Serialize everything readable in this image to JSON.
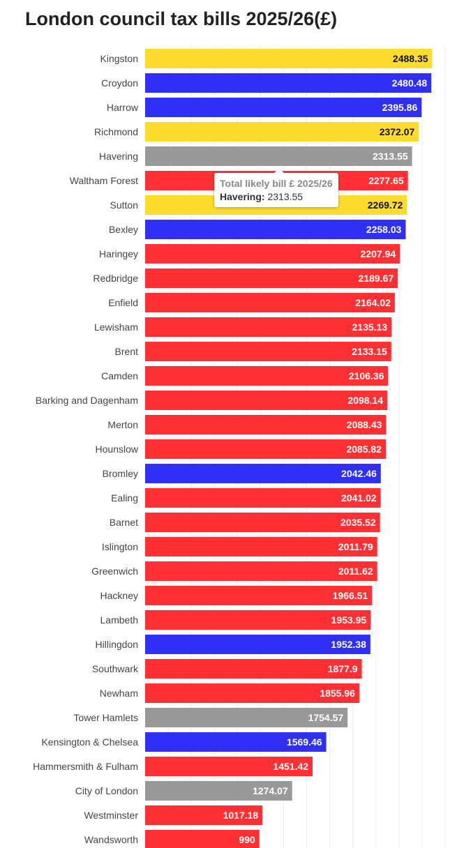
{
  "chart_data": {
    "type": "bar",
    "orientation": "horizontal",
    "title": "London council tax bills 2025/26(£)",
    "xlim": [
      0,
      2600
    ],
    "grid": true,
    "categories": [
      "Kingston",
      "Croydon",
      "Harrow",
      "Richmond",
      "Havering",
      "Waltham Forest",
      "Sutton",
      "Bexley",
      "Haringey",
      "Redbridge",
      "Enfield",
      "Lewisham",
      "Brent",
      "Camden",
      "Barking and Dagenham",
      "Merton",
      "Hounslow",
      "Bromley",
      "Ealing",
      "Barnet",
      "Islington",
      "Greenwich",
      "Hackney",
      "Lambeth",
      "Hillingdon",
      "Southwark",
      "Newham",
      "Tower Hamlets",
      "Kensington & Chelsea",
      "Hammersmith & Fulham",
      "City of London",
      "Westminster",
      "Wandsworth"
    ],
    "values": [
      2488.35,
      2480.48,
      2395.86,
      2372.07,
      2313.55,
      2277.65,
      2269.72,
      2258.03,
      2207.94,
      2189.67,
      2164.02,
      2135.13,
      2133.15,
      2106.36,
      2098.14,
      2088.43,
      2085.82,
      2042.46,
      2041.02,
      2035.52,
      2011.79,
      2011.62,
      1966.51,
      1953.95,
      1952.38,
      1877.9,
      1855.96,
      1754.57,
      1569.46,
      1451.42,
      1274.07,
      1017.18,
      990
    ],
    "colors": [
      "#FDDC2E",
      "#2F2FF5",
      "#2F2FF5",
      "#FDDC2E",
      "#999999",
      "#FF3033",
      "#FDDC2E",
      "#2F2FF5",
      "#FF3033",
      "#FF3033",
      "#FF3033",
      "#FF3033",
      "#FF3033",
      "#FF3033",
      "#FF3033",
      "#FF3033",
      "#FF3033",
      "#2F2FF5",
      "#FF3033",
      "#FF3033",
      "#FF3033",
      "#FF3033",
      "#FF3033",
      "#FF3033",
      "#2F2FF5",
      "#FF3033",
      "#FF3033",
      "#999999",
      "#2F2FF5",
      "#FF3033",
      "#999999",
      "#FF3033",
      "#FF3033"
    ],
    "tooltip": {
      "header": "Total likely bill £ 2025/26",
      "category": "Havering:",
      "value": "2313.55"
    }
  }
}
